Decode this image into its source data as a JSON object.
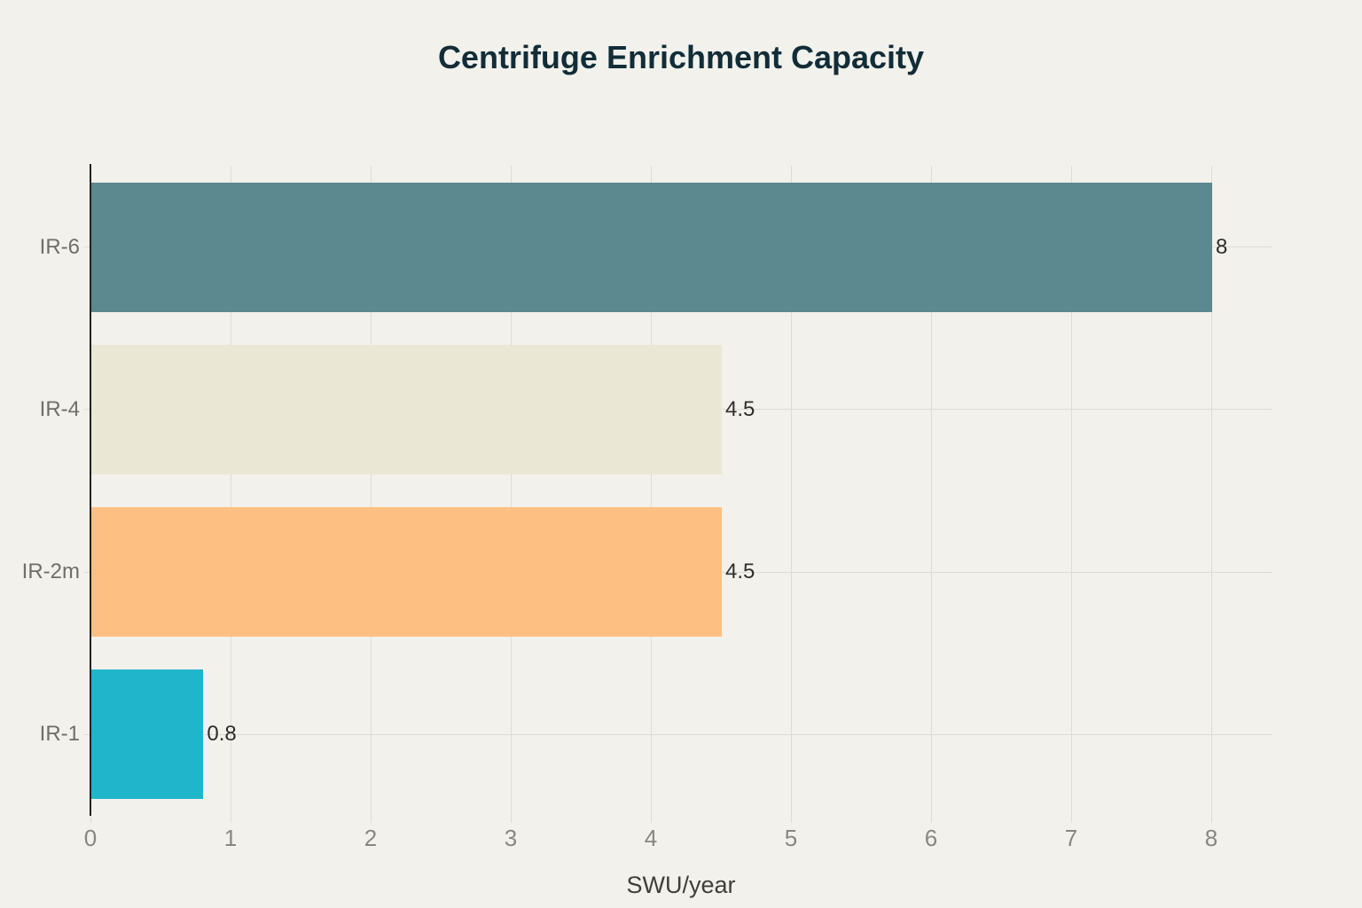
{
  "chart_data": {
    "type": "bar",
    "orientation": "horizontal",
    "title": "Centrifuge Enrichment Capacity",
    "xlabel": "SWU/year",
    "ylabel": "",
    "categories": [
      "IR-6",
      "IR-4",
      "IR-2m",
      "IR-1"
    ],
    "values": [
      8,
      4.5,
      4.5,
      0.8
    ],
    "value_labels": [
      "8",
      "4.5",
      "4.5",
      "0.8"
    ],
    "bar_colors": [
      "#5C888F",
      "#EAE8D5",
      "#FDBF82",
      "#21B5CC"
    ],
    "xlim": [
      0,
      8
    ],
    "xticks": [
      "0",
      "1",
      "2",
      "3",
      "4",
      "5",
      "6",
      "7",
      "8"
    ],
    "grid": true,
    "legend": false
  },
  "colors": {
    "background": "#F2F1EB",
    "title": "#112D38",
    "gridline": "#DDDCD4",
    "axis_line": "#222222",
    "tick_label": "#878783",
    "category_label": "#6E6E6A",
    "value_label": "#2E2E2C",
    "axis_title": "#3E3E3B"
  }
}
